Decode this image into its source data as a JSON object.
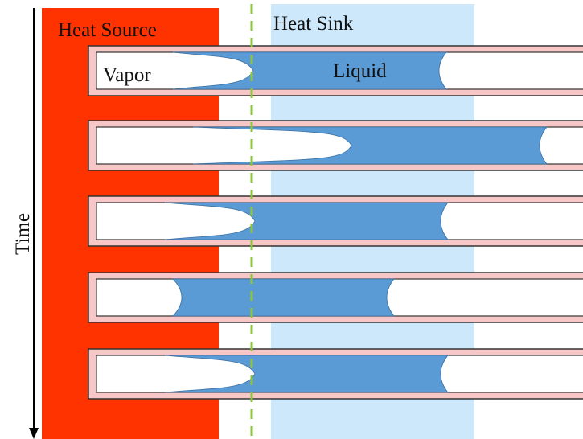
{
  "labels": {
    "heat_source": "Heat Source",
    "heat_sink": "Heat Sink",
    "vapor": "Vapor",
    "liquid": "Liquid",
    "time": "Time"
  }
}
